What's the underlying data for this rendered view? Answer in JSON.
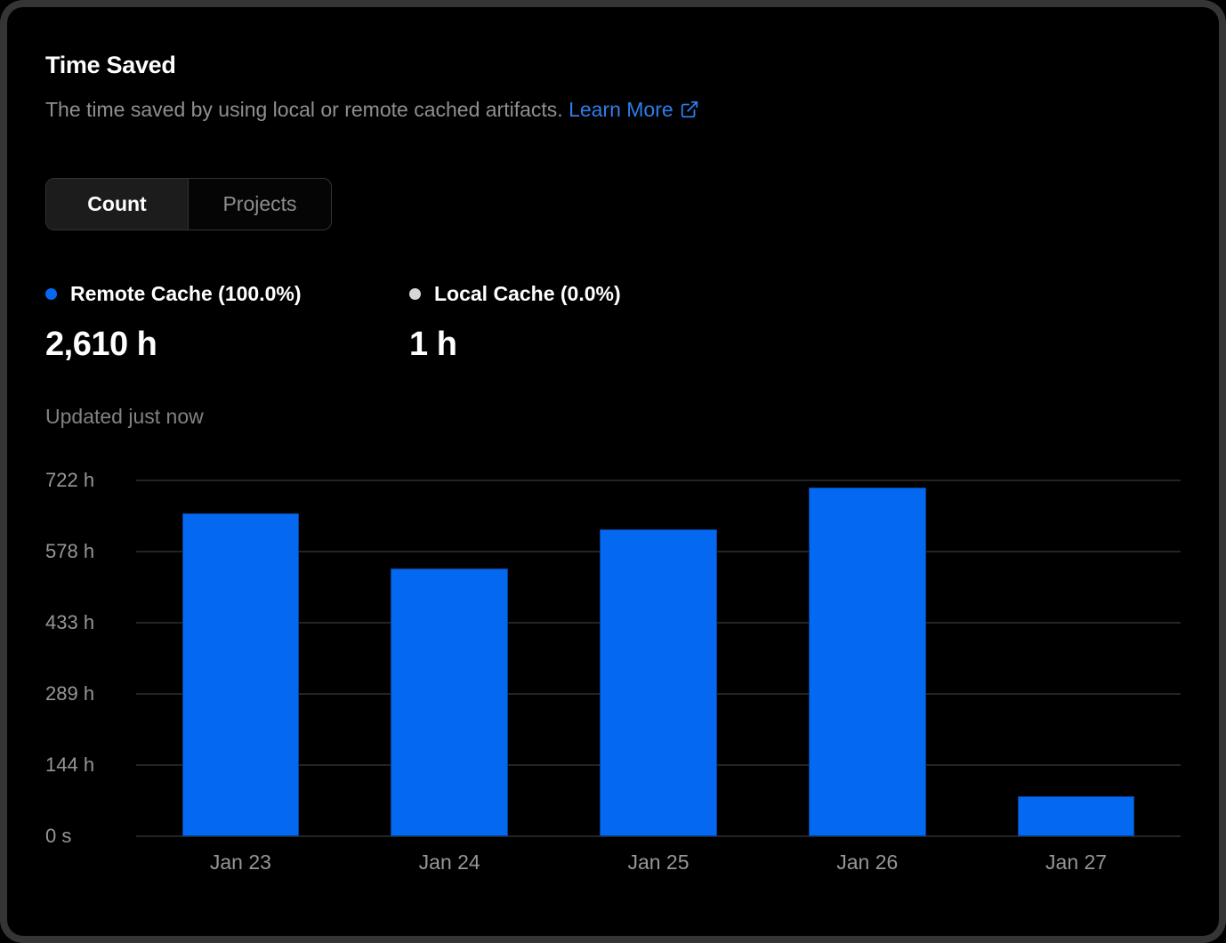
{
  "card": {
    "title": "Time Saved",
    "subtitle": "The time saved by using local or remote cached artifacts.",
    "learn_more_label": "Learn More"
  },
  "tabs": [
    {
      "label": "Count",
      "active": true
    },
    {
      "label": "Projects",
      "active": false
    }
  ],
  "legend": [
    {
      "label": "Remote Cache (100.0%)",
      "value": "2,610 h",
      "color": "#0468f0"
    },
    {
      "label": "Local Cache (0.0%)",
      "value": "1 h",
      "color": "#d6d6d6"
    }
  ],
  "status": "Updated just now",
  "colors": {
    "link": "#2e7de9",
    "bar": "#0468f0",
    "gridline": "#242424",
    "axis_label": "#969696",
    "card_background": "#000000",
    "page_background": "#353535"
  },
  "chart_data": {
    "type": "bar",
    "title": "Time Saved",
    "series_name": "Remote Cache",
    "categories": [
      "Jan 23",
      "Jan 24",
      "Jan 25",
      "Jan 26",
      "Jan 27"
    ],
    "values": [
      655,
      543,
      623,
      708,
      81
    ],
    "unit": "h",
    "total": "2,610 h",
    "xlabel": "",
    "ylabel": "",
    "ylim": [
      0,
      722
    ],
    "ytick_values": [
      0,
      144,
      289,
      433,
      578,
      722
    ],
    "ytick_labels": [
      "0 s",
      "144 h",
      "289 h",
      "433 h",
      "578 h",
      "722 h"
    ],
    "grid": true,
    "legend_position": "top-left",
    "bar_color": "#0468f0"
  }
}
